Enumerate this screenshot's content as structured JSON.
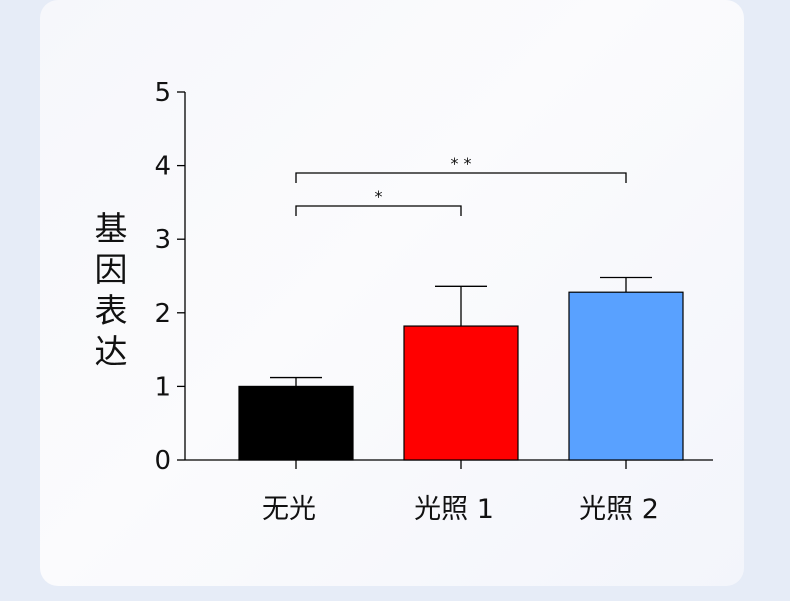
{
  "chart_data": {
    "type": "bar",
    "title": "",
    "xlabel": "",
    "ylabel": "基因表达",
    "ylim": [
      0,
      5
    ],
    "yticks": [
      0,
      1,
      2,
      3,
      4,
      5
    ],
    "categories": [
      "无光",
      "光照 1",
      "光照 2"
    ],
    "values": [
      1.0,
      1.82,
      2.28
    ],
    "errors": [
      0.12,
      0.54,
      0.2
    ],
    "colors": [
      "#000000",
      "#ff0000",
      "#59a1ff"
    ],
    "significance": [
      {
        "from": 0,
        "to": 1,
        "label": "*"
      },
      {
        "from": 0,
        "to": 2,
        "label": "* *"
      }
    ]
  }
}
